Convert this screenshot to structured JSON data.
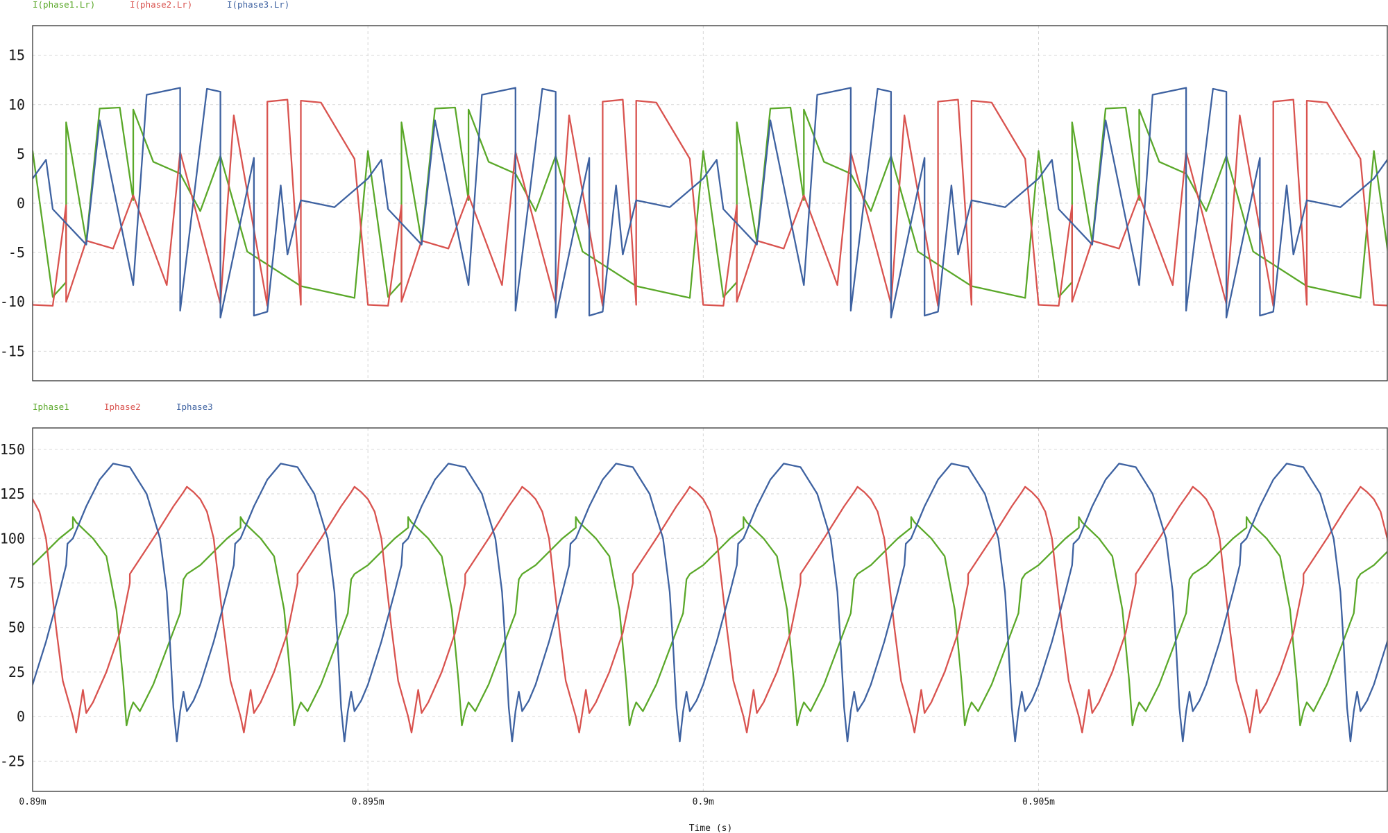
{
  "x_axis": {
    "label": "Time (s)",
    "range": [
      0.89,
      0.9102
    ],
    "ticks": [
      {
        "value": 0.89,
        "label": "0.89m"
      },
      {
        "value": 0.895,
        "label": "0.895m"
      },
      {
        "value": 0.9,
        "label": "0.9m"
      },
      {
        "value": 0.905,
        "label": "0.905m"
      }
    ]
  },
  "chart_data": [
    {
      "type": "line",
      "title": "",
      "xlabel": "Time (s)",
      "ylabel": "",
      "ylim": [
        -18,
        18
      ],
      "grid": true,
      "legend_placement": "top-left",
      "yticks": [
        15,
        10,
        5,
        0,
        -5,
        -10,
        -15
      ],
      "ytick_labels": [
        "15",
        "10",
        "5",
        "0",
        "-5",
        "-10",
        "-15"
      ],
      "period": 0.005,
      "x_start": 0.89,
      "series": [
        {
          "name": "I(phase1.Lr)",
          "color": "#5aa829",
          "cycle": [
            [
              0.89,
              5.3
            ],
            [
              0.8905,
              8.2
            ],
            [
              0.891,
              9.6
            ],
            [
              0.8913,
              9.7
            ],
            [
              0.8915,
              9.5
            ],
            [
              0.8918,
              4.2
            ],
            [
              0.8925,
              -0.8
            ],
            [
              0.8932,
              -4.9
            ],
            [
              0.894,
              -8.4
            ],
            [
              0.8948,
              -9.6
            ],
            [
              0.8953,
              -9.5
            ],
            [
              0.8955,
              -8.0
            ],
            [
              0.8958,
              -3.9
            ],
            [
              0.8965,
              0.3
            ],
            [
              0.8972,
              3.0
            ],
            [
              0.8978,
              4.8
            ],
            [
              0.895,
              5.3
            ]
          ]
        },
        {
          "name": "I(phase2.Lr)",
          "color": "#d9534f",
          "cycle": [
            [
              0.89,
              -10.3
            ],
            [
              0.8903,
              -10.4
            ],
            [
              0.8905,
              -10.0
            ],
            [
              0.8908,
              -3.8
            ],
            [
              0.8915,
              0.8
            ],
            [
              0.8922,
              5.2
            ],
            [
              0.893,
              8.9
            ],
            [
              0.8935,
              10.3
            ],
            [
              0.8938,
              10.5
            ],
            [
              0.894,
              10.4
            ],
            [
              0.8943,
              10.2
            ],
            [
              0.8948,
              4.5
            ],
            [
              0.8955,
              -0.2
            ],
            [
              0.8962,
              -4.6
            ],
            [
              0.897,
              -8.3
            ],
            [
              0.8978,
              -10.2
            ],
            [
              0.8985,
              -10.4
            ],
            [
              0.899,
              -10.3
            ]
          ]
        },
        {
          "name": "I(phase3.Lr)",
          "color": "#3e62a1",
          "cycle": [
            [
              0.89,
              2.5
            ],
            [
              0.8903,
              -0.6
            ],
            [
              0.8908,
              -4.2
            ],
            [
              0.8915,
              -8.3
            ],
            [
              0.8922,
              -10.9
            ],
            [
              0.8928,
              -11.6
            ],
            [
              0.8933,
              -11.4
            ],
            [
              0.8935,
              -11.0
            ],
            [
              0.8938,
              -5.2
            ],
            [
              0.8945,
              -0.4
            ],
            [
              0.8952,
              4.4
            ],
            [
              0.896,
              8.4
            ],
            [
              0.8967,
              11.0
            ],
            [
              0.8972,
              11.7
            ],
            [
              0.8976,
              11.6
            ],
            [
              0.8978,
              11.3
            ],
            [
              0.8983,
              4.6
            ],
            [
              0.8987,
              1.8
            ],
            [
              0.899,
              0.3
            ]
          ]
        }
      ]
    },
    {
      "type": "line",
      "title": "",
      "xlabel": "Time (s)",
      "ylabel": "",
      "ylim": [
        -42,
        162
      ],
      "grid": true,
      "legend_placement": "top-left",
      "yticks": [
        150,
        125,
        100,
        75,
        50,
        25,
        0,
        -25
      ],
      "ytick_labels": [
        "150",
        "125",
        "100",
        "75",
        "50",
        "25",
        "0",
        "-25"
      ],
      "period": 0.0025,
      "x_start": 0.89,
      "series": [
        {
          "name": "Iphase1",
          "color": "#5aa829",
          "cycle": [
            [
              0.89,
              85
            ],
            [
              0.8904,
              100
            ],
            [
              0.8906,
              106
            ],
            [
              0.8906,
              112
            ],
            [
              0.89065,
              109
            ],
            [
              0.8909,
              100
            ],
            [
              0.8911,
              90
            ],
            [
              0.89125,
              60
            ],
            [
              0.89135,
              20
            ],
            [
              0.8914,
              -5
            ],
            [
              0.89145,
              3
            ],
            [
              0.8915,
              8
            ],
            [
              0.8916,
              3
            ],
            [
              0.8918,
              18
            ],
            [
              0.892,
              38
            ],
            [
              0.8922,
              58
            ],
            [
              0.89225,
              77
            ],
            [
              0.8923,
              80
            ],
            [
              0.8925,
              85
            ]
          ]
        },
        {
          "name": "Iphase2",
          "color": "#d9534f",
          "cycle": [
            [
              0.89,
              122
            ],
            [
              0.8901,
              115
            ],
            [
              0.8902,
              100
            ],
            [
              0.89035,
              50
            ],
            [
              0.89045,
              20
            ],
            [
              0.8906,
              0
            ],
            [
              0.89065,
              -9
            ],
            [
              0.8907,
              3
            ],
            [
              0.89075,
              15
            ],
            [
              0.8908,
              2
            ],
            [
              0.8909,
              8
            ],
            [
              0.8911,
              25
            ],
            [
              0.8913,
              47
            ],
            [
              0.89145,
              75
            ],
            [
              0.89145,
              80
            ],
            [
              0.8918,
              100
            ],
            [
              0.8921,
              118
            ],
            [
              0.89225,
              126
            ],
            [
              0.8923,
              129
            ],
            [
              0.8924,
              126
            ],
            [
              0.8925,
              122
            ]
          ]
        },
        {
          "name": "Iphase3",
          "color": "#3e62a1",
          "cycle": [
            [
              0.89,
              18
            ],
            [
              0.8902,
              42
            ],
            [
              0.8904,
              70
            ],
            [
              0.8905,
              85
            ],
            [
              0.89052,
              97
            ],
            [
              0.8906,
              100
            ],
            [
              0.8908,
              118
            ],
            [
              0.891,
              133
            ],
            [
              0.8912,
              142
            ],
            [
              0.89145,
              140
            ],
            [
              0.8917,
              125
            ],
            [
              0.8919,
              100
            ],
            [
              0.892,
              70
            ],
            [
              0.89205,
              40
            ],
            [
              0.8921,
              5
            ],
            [
              0.89215,
              -14
            ],
            [
              0.8922,
              3
            ],
            [
              0.89225,
              14
            ],
            [
              0.8923,
              3
            ],
            [
              0.8924,
              9
            ],
            [
              0.8925,
              18
            ]
          ]
        }
      ]
    }
  ]
}
